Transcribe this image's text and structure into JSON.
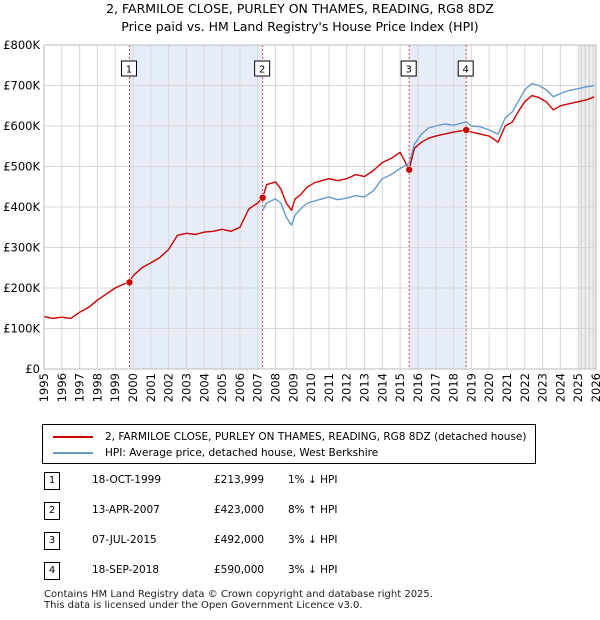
{
  "chart_data": {
    "type": "line",
    "title": "2, FARMILOE CLOSE, PURLEY ON THAMES, READING, RG8 8DZ",
    "subtitle": "Price paid vs. HM Land Registry's House Price Index (HPI)",
    "xlim": [
      1995,
      2026
    ],
    "ylim": [
      0,
      800000
    ],
    "x_ticks": [
      1995,
      1996,
      1997,
      1998,
      1999,
      2000,
      2001,
      2002,
      2003,
      2004,
      2005,
      2006,
      2007,
      2008,
      2009,
      2010,
      2011,
      2012,
      2013,
      2014,
      2015,
      2016,
      2017,
      2018,
      2019,
      2020,
      2021,
      2022,
      2023,
      2024,
      2025,
      2026
    ],
    "y_ticks": [
      {
        "value": 0,
        "label": "£0"
      },
      {
        "value": 100000,
        "label": "£100K"
      },
      {
        "value": 200000,
        "label": "£200K"
      },
      {
        "value": 300000,
        "label": "£300K"
      },
      {
        "value": 400000,
        "label": "£400K"
      },
      {
        "value": 500000,
        "label": "£500K"
      },
      {
        "value": 600000,
        "label": "£600K"
      },
      {
        "value": 700000,
        "label": "£700K"
      },
      {
        "value": 800000,
        "label": "£800K"
      }
    ],
    "shaded_ranges": [
      [
        1999.8,
        2007.28
      ],
      [
        2015.51,
        2018.71
      ]
    ],
    "forecast_start": 2025.0,
    "series": [
      {
        "name": "2, FARMILOE CLOSE, PURLEY ON THAMES, READING, RG8 8DZ (detached house)",
        "color": "#cc0000",
        "x": [
          1995.0,
          1995.5,
          1996.0,
          1996.5,
          1997.0,
          1997.5,
          1998.0,
          1998.5,
          1999.0,
          1999.5,
          1999.8,
          2000.0,
          2000.5,
          2001.0,
          2001.5,
          2002.0,
          2002.5,
          2003.0,
          2003.5,
          2004.0,
          2004.5,
          2005.0,
          2005.5,
          2006.0,
          2006.5,
          2007.0,
          2007.28,
          2007.5,
          2008.0,
          2008.3,
          2008.6,
          2008.9,
          2009.1,
          2009.4,
          2009.8,
          2010.2,
          2010.6,
          2011.0,
          2011.5,
          2012.0,
          2012.5,
          2013.0,
          2013.5,
          2014.0,
          2014.5,
          2015.0,
          2015.51,
          2015.8,
          2016.2,
          2016.6,
          2017.0,
          2017.5,
          2018.0,
          2018.71,
          2019.0,
          2019.5,
          2020.0,
          2020.5,
          2020.9,
          2021.3,
          2021.7,
          2022.0,
          2022.4,
          2022.8,
          2023.2,
          2023.6,
          2024.0,
          2024.5,
          2025.0,
          2025.5,
          2025.9
        ],
        "y": [
          130000,
          125000,
          128000,
          125000,
          140000,
          152000,
          170000,
          185000,
          200000,
          210000,
          213999,
          230000,
          250000,
          262000,
          275000,
          295000,
          330000,
          335000,
          332000,
          338000,
          340000,
          345000,
          340000,
          350000,
          395000,
          410000,
          423000,
          455000,
          462000,
          445000,
          410000,
          392000,
          420000,
          430000,
          450000,
          460000,
          465000,
          470000,
          465000,
          470000,
          480000,
          475000,
          490000,
          510000,
          520000,
          535000,
          492000,
          545000,
          560000,
          570000,
          575000,
          580000,
          585000,
          590000,
          585000,
          580000,
          575000,
          560000,
          600000,
          610000,
          640000,
          660000,
          675000,
          670000,
          660000,
          640000,
          650000,
          655000,
          660000,
          665000,
          672000
        ]
      },
      {
        "name": "HPI: Average price, detached house, West Berkshire",
        "color": "#6699cc",
        "x": [
          2007.28,
          2007.5,
          2008.0,
          2008.3,
          2008.6,
          2008.9,
          2009.1,
          2009.4,
          2009.8,
          2010.2,
          2010.6,
          2011.0,
          2011.5,
          2012.0,
          2012.5,
          2013.0,
          2013.5,
          2014.0,
          2014.5,
          2015.0,
          2015.51,
          2015.8,
          2016.2,
          2016.6,
          2017.0,
          2017.5,
          2018.0,
          2018.71,
          2019.0,
          2019.5,
          2020.0,
          2020.5,
          2020.9,
          2021.3,
          2021.7,
          2022.0,
          2022.4,
          2022.8,
          2023.2,
          2023.6,
          2024.0,
          2024.5,
          2025.0,
          2025.5,
          2025.9
        ],
        "y": [
          391000,
          410000,
          420000,
          410000,
          375000,
          355000,
          380000,
          395000,
          410000,
          415000,
          420000,
          425000,
          418000,
          422000,
          428000,
          425000,
          440000,
          470000,
          480000,
          495000,
          508000,
          555000,
          580000,
          595000,
          600000,
          605000,
          602000,
          610000,
          600000,
          598000,
          590000,
          580000,
          620000,
          635000,
          665000,
          690000,
          705000,
          700000,
          690000,
          672000,
          680000,
          688000,
          692000,
          697000,
          700000
        ]
      }
    ],
    "sales": [
      {
        "num": "1",
        "x": 1999.8,
        "y": 213999
      },
      {
        "num": "2",
        "x": 2007.28,
        "y": 423000
      },
      {
        "num": "3",
        "x": 2015.51,
        "y": 492000
      },
      {
        "num": "4",
        "x": 2018.71,
        "y": 590000
      }
    ]
  },
  "legend": {
    "series1_label": "2, FARMILOE CLOSE, PURLEY ON THAMES, READING, RG8 8DZ (detached house)",
    "series2_label": "HPI: Average price, detached house, West Berkshire"
  },
  "table": [
    {
      "num": "1",
      "date": "18-OCT-1999",
      "price": "£213,999",
      "hpi": "1% ↓ HPI"
    },
    {
      "num": "2",
      "date": "13-APR-2007",
      "price": "£423,000",
      "hpi": "8% ↑ HPI"
    },
    {
      "num": "3",
      "date": "07-JUL-2015",
      "price": "£492,000",
      "hpi": "3% ↓ HPI"
    },
    {
      "num": "4",
      "date": "18-SEP-2018",
      "price": "£590,000",
      "hpi": "3% ↓ HPI"
    }
  ],
  "footer": {
    "line1": "Contains HM Land Registry data © Crown copyright and database right 2025.",
    "line2": "This data is licensed under the Open Government Licence v3.0."
  },
  "colors": {
    "property": "#cc0000",
    "hpi": "#6699cc",
    "shade": "#e6ecf8"
  }
}
